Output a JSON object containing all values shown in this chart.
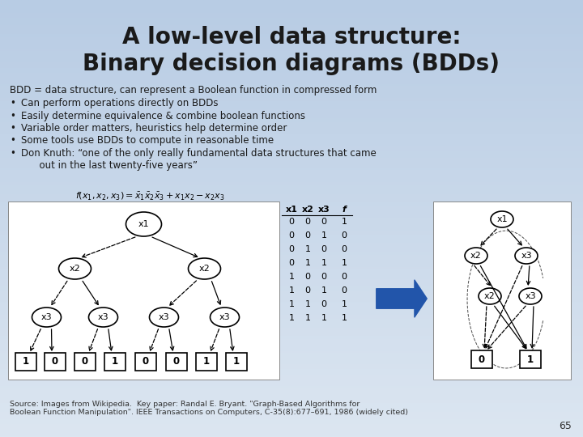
{
  "title_line1": "A low-level data structure:",
  "title_line2": "Binary decision diagrams (BDDs)",
  "slide_background_top": "#b8cce4",
  "slide_background_bottom": "#dce6f1",
  "title_color": "#1a1a1a",
  "body_color": "#1a1a1a",
  "intro_text": "BDD = data structure, can represent a Boolean function in compressed form",
  "bullets": [
    "Can perform operations directly on BDDs",
    "Easily determine equivalence & combine boolean functions",
    "Variable order matters, heuristics help determine order",
    "Some tools use BDDs to compute in reasonable time",
    "Don Knuth: “one of the only really fundamental data structures that came\n      out in the last twenty-five years”"
  ],
  "source_text": "Source: Images from Wikipedia.  Key paper: Randal E. Bryant. \"Graph-Based Algorithms for\nBoolean Function Manipulation\". IEEE Transactions on Computers, C-35(8):677–691, 1986 (widely cited)",
  "page_number": "65",
  "table_rows": [
    [
      "0",
      "0",
      "0",
      "1"
    ],
    [
      "0",
      "0",
      "1",
      "0"
    ],
    [
      "0",
      "1",
      "0",
      "0"
    ],
    [
      "0",
      "1",
      "1",
      "1"
    ],
    [
      "1",
      "0",
      "0",
      "0"
    ],
    [
      "1",
      "0",
      "1",
      "0"
    ],
    [
      "1",
      "1",
      "0",
      "1"
    ],
    [
      "1",
      "1",
      "1",
      "1"
    ]
  ],
  "t_labels": [
    "1",
    "0",
    "0",
    "1",
    "0",
    "0",
    "1",
    "1"
  ]
}
